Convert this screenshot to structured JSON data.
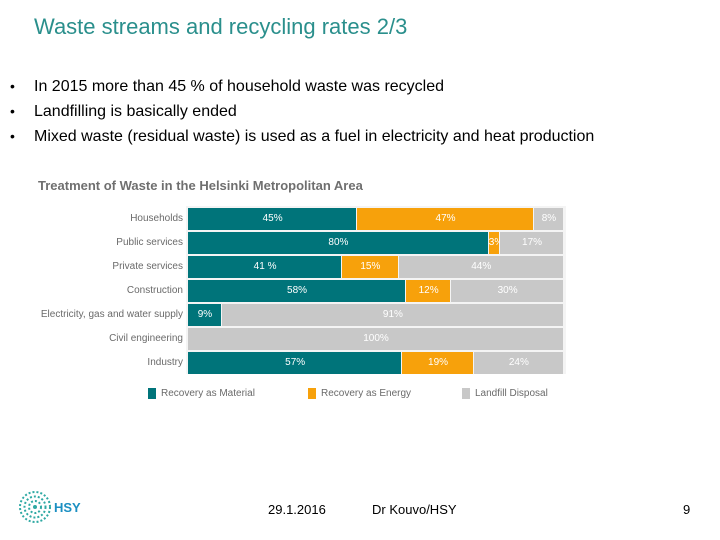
{
  "slide": {
    "title": "Waste streams and recycling rates 2/3",
    "bullets": [
      "In 2015 more than 45 % of household waste was recycled",
      "Landfilling is basically ended",
      "Mixed waste (residual waste) is used as a fuel in electricity and heat production"
    ],
    "bullet_symbol": "•"
  },
  "chart_data": {
    "type": "bar",
    "orientation": "horizontal",
    "stacked": true,
    "percent": true,
    "title": "Treatment of Waste in the Helsinki Metropolitan Area",
    "categories": [
      "Households",
      "Public services",
      "Private services",
      "Construction",
      "Electricity, gas and water supply",
      "Civil engineering",
      "Industry"
    ],
    "series": [
      {
        "name": "Recovery as Material",
        "color": "#00747a",
        "values": [
          45,
          80,
          41,
          58,
          9,
          0,
          57
        ],
        "labels": [
          "45%",
          "80%",
          "41 %",
          "58%",
          "9%",
          "",
          "57%"
        ]
      },
      {
        "name": "Recovery as Energy",
        "color": "#f7a10b",
        "values": [
          47,
          3,
          15,
          12,
          0,
          0,
          19
        ],
        "labels": [
          "47%",
          "3%",
          "15%",
          "12%",
          "",
          "",
          "19%"
        ]
      },
      {
        "name": "Landfill Disposal",
        "color": "#c8c8c8",
        "values": [
          8,
          17,
          44,
          30,
          91,
          100,
          24
        ],
        "labels": [
          "8%",
          "17%",
          "44%",
          "30%",
          "91%",
          "100%",
          "24%"
        ]
      }
    ],
    "xlim": [
      0,
      100
    ],
    "legend_position": "bottom"
  },
  "footer": {
    "date": "29.1.2016",
    "author": "Dr Kouvo/HSY",
    "page": "9",
    "logo_text": "HSY"
  }
}
